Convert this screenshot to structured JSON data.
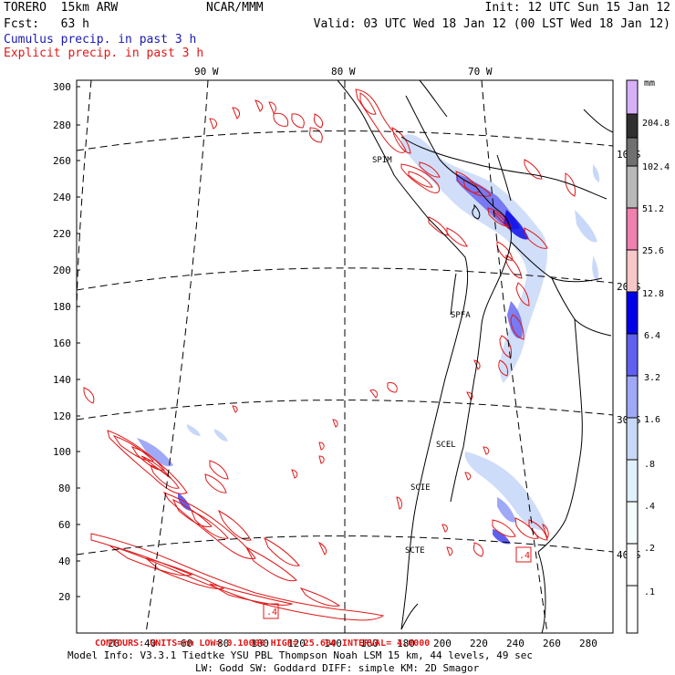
{
  "header": {
    "model": "TORERO  15km ARW",
    "org": "NCAR/MMM",
    "init": "Init: 12 UTC Sun 15 Jan 12",
    "fcst": "Fcst:   63 h",
    "valid": "Valid: 03 UTC Wed 18 Jan 12 (00 LST Wed 18 Jan 12)",
    "cumulus_label": "Cumulus precip. in past 3 h",
    "explicit_label": "Explicit precip. in past 3 h"
  },
  "colors": {
    "cumulus": "#1a1ab0",
    "explicit": "#e01818",
    "land": "#000000",
    "grid": "#000000"
  },
  "axes": {
    "y_ticks": [
      "300",
      "280",
      "260",
      "240",
      "220",
      "200",
      "180",
      "160",
      "140",
      "120",
      "100",
      "80",
      "60",
      "40",
      "20"
    ],
    "x_ticks": [
      "20",
      "40",
      "60",
      "80",
      "100",
      "120",
      "140",
      "160",
      "180",
      "200",
      "220",
      "240",
      "260",
      "280"
    ]
  },
  "lon_labels": [
    "90 W",
    "80 W",
    "70 W"
  ],
  "lat_labels": [
    "10 S",
    "20 S",
    "30 S",
    "40 S"
  ],
  "station_labels": [
    "SPIM",
    "SPFA",
    "SCEL",
    "SCIE",
    "SCTE"
  ],
  "legend": {
    "unit": "mm",
    "levels": [
      {
        "label": "204.8",
        "color": "#303030"
      },
      {
        "label": "102.4",
        "color": "#707070"
      },
      {
        "label": "51.2",
        "color": "#b8b8b8"
      },
      {
        "label": "25.6",
        "color": "#f080b0"
      },
      {
        "label": "12.8",
        "color": "#f8c8c8"
      },
      {
        "label": "6.4",
        "color": "#0000e8"
      },
      {
        "label": "3.2",
        "color": "#6060f0"
      },
      {
        "label": "1.6",
        "color": "#a0a8f8"
      },
      {
        "label": ".8",
        "color": "#c8d8f8"
      },
      {
        "label": ".4",
        "color": "#e0f0fc"
      },
      {
        "label": ".2",
        "color": "#f4fcfc"
      },
      {
        "label": ".1",
        "color": "#ffffff"
      }
    ],
    "top_color": "#d8b0f8"
  },
  "footer": {
    "contour_text": "CONTOURS:  UNITS=mm     LOW= 0.10000     HIGH= 25.600     INTERVAL= 4.0000",
    "model_info": "Model Info: V3.3.1     Tiedtke YSU PBL  Thompson     Noah LSM  15 km,   44 levels,   49 sec",
    "physics": "LW: Godd SW: Goddard DIFF: simple KM: 2D Smagor"
  },
  "box_labels": [
    ".4",
    ".4"
  ]
}
